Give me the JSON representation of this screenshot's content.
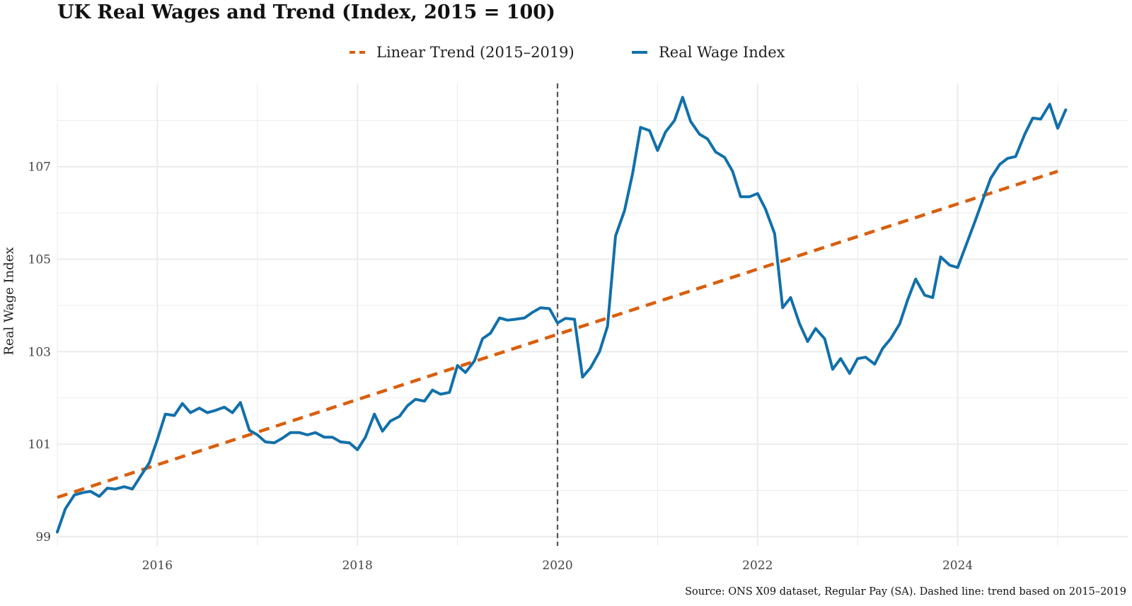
{
  "title": "UK Real Wages and Trend (Index, 2015 = 100)",
  "caption": "Source: ONS X09 dataset, Regular Pay (SA). Dashed line: trend based on 2015–2019",
  "colors": {
    "wage": "#1170aa",
    "trend": "#d95f0e",
    "divider": "#555555",
    "grid": "#ebebeb"
  },
  "chart_data": {
    "type": "line",
    "title": "UK Real Wages and Trend (Index, 2015 = 100)",
    "xlabel": "",
    "ylabel": "Real Wage Index",
    "xlim": [
      2015.0,
      2025.7
    ],
    "ylim": [
      98.8,
      108.8
    ],
    "x_ticks": [
      2016,
      2018,
      2020,
      2022,
      2024
    ],
    "x_tick_labels": [
      "2016",
      "2018",
      "2020",
      "2022",
      "2024"
    ],
    "y_ticks": [
      99,
      101,
      103,
      105,
      107
    ],
    "y_tick_labels": [
      "99",
      "101",
      "103",
      "105",
      "107"
    ],
    "grid": true,
    "legend_position": "top",
    "vline_x": 2020.0,
    "series": [
      {
        "name": "Linear Trend (2015–2019)",
        "style": "dashed",
        "x": [
          2015.0,
          2025.0
        ],
        "values": [
          99.85,
          106.9
        ]
      },
      {
        "name": "Real Wage Index",
        "style": "solid",
        "x": [
          2015.0,
          2015.08,
          2015.17,
          2015.25,
          2015.33,
          2015.42,
          2015.5,
          2015.58,
          2015.67,
          2015.75,
          2015.83,
          2015.92,
          2016.0,
          2016.08,
          2016.17,
          2016.25,
          2016.33,
          2016.42,
          2016.5,
          2016.58,
          2016.67,
          2016.75,
          2016.83,
          2016.92,
          2017.0,
          2017.08,
          2017.17,
          2017.25,
          2017.33,
          2017.42,
          2017.5,
          2017.58,
          2017.67,
          2017.75,
          2017.83,
          2017.92,
          2018.0,
          2018.08,
          2018.17,
          2018.25,
          2018.33,
          2018.42,
          2018.5,
          2018.58,
          2018.67,
          2018.75,
          2018.83,
          2018.92,
          2019.0,
          2019.08,
          2019.17,
          2019.25,
          2019.33,
          2019.42,
          2019.5,
          2019.58,
          2019.67,
          2019.75,
          2019.83,
          2019.92,
          2020.0,
          2020.08,
          2020.17,
          2020.25,
          2020.33,
          2020.42,
          2020.5,
          2020.58,
          2020.67,
          2020.75,
          2020.83,
          2020.92,
          2021.0,
          2021.08,
          2021.17,
          2021.25,
          2021.33,
          2021.42,
          2021.5,
          2021.58,
          2021.67,
          2021.75,
          2021.83,
          2021.92,
          2022.0,
          2022.08,
          2022.17,
          2022.25,
          2022.33,
          2022.42,
          2022.5,
          2022.58,
          2022.67,
          2022.75,
          2022.83,
          2022.92,
          2023.0,
          2023.08,
          2023.17,
          2023.25,
          2023.33,
          2023.42,
          2023.5,
          2023.58,
          2023.67,
          2023.75,
          2023.83,
          2023.92,
          2024.0,
          2024.08,
          2024.17,
          2024.25,
          2024.33,
          2024.42,
          2024.5,
          2024.58,
          2024.67,
          2024.75,
          2024.83,
          2024.92,
          2025.0,
          2025.08
        ],
        "values": [
          99.1,
          99.6,
          99.9,
          99.95,
          99.98,
          99.87,
          100.05,
          100.03,
          100.08,
          100.03,
          100.3,
          100.6,
          101.1,
          101.65,
          101.62,
          101.88,
          101.68,
          101.78,
          101.68,
          101.73,
          101.8,
          101.68,
          101.9,
          101.3,
          101.2,
          101.05,
          101.03,
          101.13,
          101.25,
          101.25,
          101.2,
          101.25,
          101.15,
          101.15,
          101.05,
          101.03,
          100.88,
          101.15,
          101.65,
          101.28,
          101.5,
          101.6,
          101.83,
          101.97,
          101.93,
          102.17,
          102.08,
          102.12,
          102.7,
          102.55,
          102.8,
          103.28,
          103.4,
          103.73,
          103.68,
          103.7,
          103.73,
          103.85,
          103.95,
          103.93,
          103.62,
          103.72,
          103.7,
          102.45,
          102.65,
          103.0,
          103.55,
          105.5,
          106.05,
          106.85,
          107.85,
          107.78,
          107.35,
          107.75,
          108.0,
          108.5,
          107.98,
          107.7,
          107.6,
          107.32,
          107.2,
          106.9,
          106.35,
          106.35,
          106.42,
          106.08,
          105.55,
          103.95,
          104.17,
          103.6,
          103.22,
          103.5,
          103.28,
          102.62,
          102.85,
          102.53,
          102.85,
          102.88,
          102.73,
          103.07,
          103.28,
          103.6,
          104.12,
          104.57,
          104.22,
          104.17,
          105.05,
          104.87,
          104.82,
          105.28,
          105.8,
          106.28,
          106.75,
          107.05,
          107.18,
          107.22,
          107.7,
          108.05,
          108.03,
          108.35,
          107.83,
          108.23
        ]
      }
    ]
  }
}
